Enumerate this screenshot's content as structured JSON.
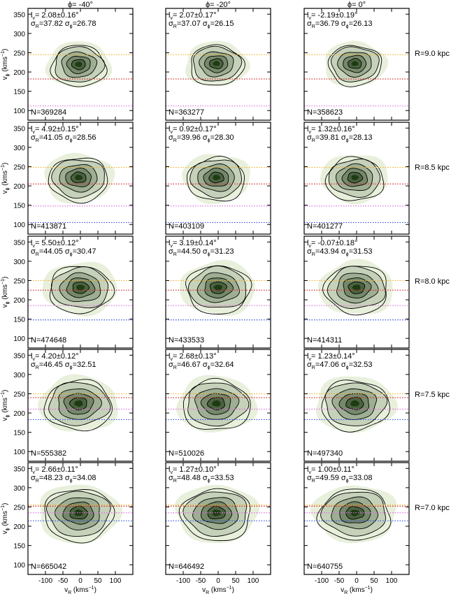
{
  "figure": {
    "column_titles": [
      "ϕ= -40°",
      "ϕ= -20°",
      "ϕ=   0°"
    ],
    "row_labels": [
      "R=9.0  kpc",
      "R=8.5  kpc",
      "R=8.0  kpc",
      "R=7.5  kpc",
      "R=7.0  kpc"
    ],
    "xlabel": "v_R (kms⁻¹)",
    "ylabel": "v_ϕ (kms⁻¹)",
    "xticks": [
      -100,
      -50,
      0,
      50,
      100
    ],
    "yticks": [
      100,
      150,
      200,
      250,
      300,
      350
    ],
    "xlim": [
      -150,
      150
    ],
    "ylim": [
      75,
      365
    ]
  },
  "chart_data": [
    {
      "type": "contour",
      "row": 0,
      "col": 0,
      "R": "R=9.0  kpc",
      "phi": "ϕ= -40°",
      "l_v": "2.08±0.16°",
      "sigma_R": "37.82",
      "sigma_phi": "26.78",
      "N": "N=369284",
      "peak": [
        -5,
        220
      ],
      "lines": {
        "orange": 245,
        "red": 182,
        "pink": 112
      }
    },
    {
      "type": "contour",
      "row": 0,
      "col": 1,
      "R": "R=9.0  kpc",
      "phi": "ϕ= -20°",
      "l_v": "2.07±0.17°",
      "sigma_R": "37.07",
      "sigma_phi": "26.15",
      "N": "N=363277",
      "peak": [
        -5,
        222
      ],
      "lines": {
        "orange": 245,
        "red": 182,
        "pink": 112
      }
    },
    {
      "type": "contour",
      "row": 0,
      "col": 2,
      "R": "R=9.0  kpc",
      "phi": "ϕ=   0°",
      "l_v": "-2.19±0.19°",
      "sigma_R": "36.79",
      "sigma_phi": "26.13",
      "N": "N=358623",
      "peak": [
        -5,
        222
      ],
      "lines": {
        "orange": 245,
        "red": 182,
        "pink": 112
      }
    },
    {
      "type": "contour",
      "row": 1,
      "col": 0,
      "R": "R=8.5  kpc",
      "phi": "ϕ= -40°",
      "l_v": "4.92±0.15°",
      "sigma_R": "41.05",
      "sigma_phi": "28.56",
      "N": "N=413871",
      "peak": [
        -5,
        222
      ],
      "lines": {
        "orange": 248,
        "red": 205,
        "pink": 148,
        "blue": 105
      }
    },
    {
      "type": "contour",
      "row": 1,
      "col": 1,
      "R": "R=8.5  kpc",
      "phi": "ϕ= -20°",
      "l_v": "0.92±0.17°",
      "sigma_R": "39.96",
      "sigma_phi": "28.30",
      "N": "N=403109",
      "peak": [
        -5,
        222
      ],
      "lines": {
        "orange": 248,
        "red": 205,
        "pink": 148,
        "blue": 105
      }
    },
    {
      "type": "contour",
      "row": 1,
      "col": 2,
      "R": "R=8.5  kpc",
      "phi": "ϕ=   0°",
      "l_v": "1.32±0.16°",
      "sigma_R": "39.81",
      "sigma_phi": "28.13",
      "N": "N=401277",
      "peak": [
        -5,
        222
      ],
      "lines": {
        "orange": 248,
        "red": 205,
        "pink": 148,
        "blue": 105
      }
    },
    {
      "type": "contour",
      "row": 2,
      "col": 0,
      "R": "R=8.0  kpc",
      "phi": "ϕ= -40°",
      "l_v": "5.50±0.12°",
      "sigma_R": "44.05",
      "sigma_phi": "30.47",
      "N": "N=474648",
      "peak": [
        0,
        232
      ],
      "lines": {
        "orange": 250,
        "red": 225,
        "pink": 185,
        "blue": 148
      }
    },
    {
      "type": "contour",
      "row": 2,
      "col": 1,
      "R": "R=8.0  kpc",
      "phi": "ϕ= -20°",
      "l_v": "3.19±0.14°",
      "sigma_R": "44.50",
      "sigma_phi": "31.23",
      "N": "N=433533",
      "peak": [
        0,
        232
      ],
      "lines": {
        "orange": 250,
        "red": 225,
        "pink": 185,
        "blue": 148
      }
    },
    {
      "type": "contour",
      "row": 2,
      "col": 2,
      "R": "R=8.0  kpc",
      "phi": "ϕ=   0°",
      "l_v": "-0.07±0.18°",
      "sigma_R": "43.94",
      "sigma_phi": "31.53",
      "N": "N=414311",
      "peak": [
        0,
        232
      ],
      "lines": {
        "orange": 250,
        "red": 225,
        "pink": 185,
        "blue": 148
      }
    },
    {
      "type": "contour",
      "row": 3,
      "col": 0,
      "R": "R=7.5  kpc",
      "phi": "ϕ= -40°",
      "l_v": "4.20±0.12°",
      "sigma_R": "46.45",
      "sigma_phi": "32.51",
      "N": "N=555382",
      "peak": [
        -5,
        225
      ],
      "lines": {
        "orange": 250,
        "red": 240,
        "pink": 210,
        "blue": 183
      }
    },
    {
      "type": "contour",
      "row": 3,
      "col": 1,
      "R": "R=7.5  kpc",
      "phi": "ϕ= -20°",
      "l_v": "2.68±0.13°",
      "sigma_R": "46.67",
      "sigma_phi": "32.64",
      "N": "N=510026",
      "peak": [
        -5,
        225
      ],
      "lines": {
        "orange": 250,
        "red": 240,
        "pink": 210,
        "blue": 183
      }
    },
    {
      "type": "contour",
      "row": 3,
      "col": 2,
      "R": "R=7.5  kpc",
      "phi": "ϕ=   0°",
      "l_v": "1.23±0.14°",
      "sigma_R": "47.06",
      "sigma_phi": "32.53",
      "N": "N=497340",
      "peak": [
        -5,
        225
      ],
      "lines": {
        "orange": 250,
        "red": 240,
        "pink": 210,
        "blue": 183
      }
    },
    {
      "type": "contour",
      "row": 4,
      "col": 0,
      "R": "R=7.0  kpc",
      "phi": "ϕ= -40°",
      "l_v": "2.66±0.11°",
      "sigma_R": "48.23",
      "sigma_phi": "34.08",
      "N": "N=665042",
      "peak": [
        -5,
        235
      ],
      "lines": {
        "orange": 255,
        "red": 252,
        "pink": 235,
        "blue": 214
      }
    },
    {
      "type": "contour",
      "row": 4,
      "col": 1,
      "R": "R=7.0  kpc",
      "phi": "ϕ= -20°",
      "l_v": "1.27±0.10°",
      "sigma_R": "48.48",
      "sigma_phi": "33.53",
      "N": "N=646492",
      "peak": [
        -5,
        235
      ],
      "lines": {
        "orange": 255,
        "red": 252,
        "pink": 235,
        "blue": 214
      }
    },
    {
      "type": "contour",
      "row": 4,
      "col": 2,
      "R": "R=7.0  kpc",
      "phi": "ϕ=   0°",
      "l_v": "1.00±0.11°",
      "sigma_R": "49.59",
      "sigma_phi": "33.08",
      "N": "N=640755",
      "peak": [
        -5,
        235
      ],
      "lines": {
        "orange": 255,
        "red": 252,
        "pink": 235,
        "blue": 214
      }
    }
  ],
  "colors": {
    "orange": "#f0b020",
    "red": "#d83030",
    "pink": "#e070e0",
    "blue": "#3050e0",
    "fill_light": "#e8f0dc",
    "fill_dark": "#1e3b14",
    "contour": "#000000"
  }
}
